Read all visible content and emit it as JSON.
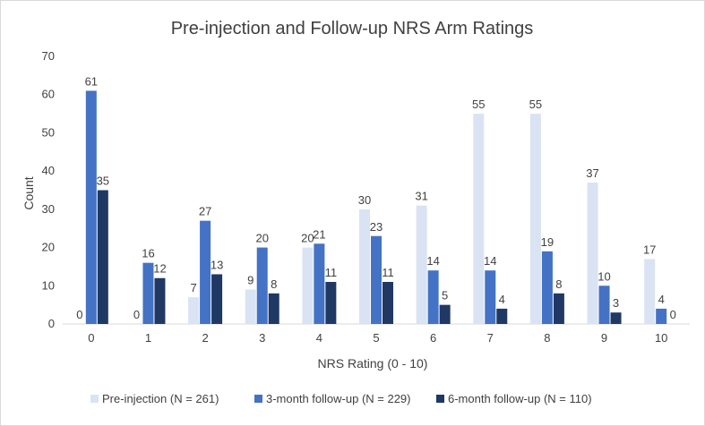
{
  "chart_data": {
    "type": "bar",
    "title": "Pre-injection and Follow-up NRS Arm Ratings",
    "xlabel": "NRS Rating (0 - 10)",
    "ylabel": "Count",
    "ylim": [
      0,
      70
    ],
    "yticks": [
      0,
      10,
      20,
      30,
      40,
      50,
      60,
      70
    ],
    "grid": false,
    "legend_position": "bottom",
    "categories": [
      "0",
      "1",
      "2",
      "3",
      "4",
      "5",
      "6",
      "7",
      "8",
      "9",
      "10"
    ],
    "series": [
      {
        "name": "Pre-injection (N = 261)",
        "color": "#dae3f3",
        "values": [
          0,
          0,
          7,
          9,
          20,
          30,
          31,
          55,
          55,
          37,
          17
        ]
      },
      {
        "name": "3-month follow-up (N = 229)",
        "color": "#4472c4",
        "values": [
          61,
          16,
          27,
          20,
          21,
          23,
          14,
          14,
          19,
          10,
          4
        ]
      },
      {
        "name": "6-month follow-up (N = 110)",
        "color": "#203864",
        "values": [
          35,
          12,
          13,
          8,
          11,
          11,
          5,
          4,
          8,
          3,
          0
        ]
      }
    ]
  }
}
